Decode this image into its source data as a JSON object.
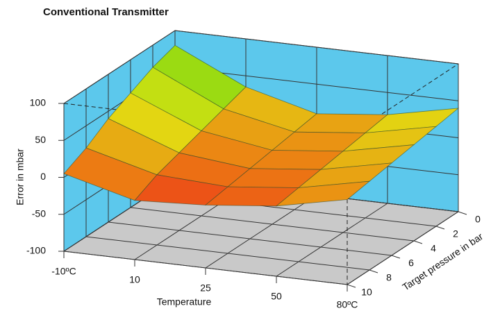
{
  "chart_data": {
    "type": "surface",
    "title": "Conventional Transmitter",
    "x_label": "Temperature",
    "y_label": "Target pressure in bar",
    "z_label": "Error in mbar",
    "categories": [
      "-10ºC",
      "10",
      "25",
      "50",
      "80ºC"
    ],
    "y": [
      0,
      2,
      4,
      6,
      8,
      10
    ],
    "ylim": [
      0,
      10
    ],
    "yticks": [
      0,
      2,
      4,
      6,
      8,
      10
    ],
    "zlim": [
      -100,
      100
    ],
    "zticks": [
      -100,
      -50,
      0,
      50,
      100
    ],
    "values": [
      [
        80,
        35,
        10,
        20,
        40
      ],
      [
        70,
        25,
        5,
        15,
        35
      ],
      [
        55,
        15,
        0,
        10,
        30
      ],
      [
        40,
        5,
        -5,
        5,
        25
      ],
      [
        20,
        -5,
        -10,
        0,
        20
      ],
      [
        5,
        -20,
        -15,
        -5,
        15
      ]
    ],
    "wall_color": "#5cc8ec",
    "floor_color": "#c9c9c9",
    "grid": true
  }
}
